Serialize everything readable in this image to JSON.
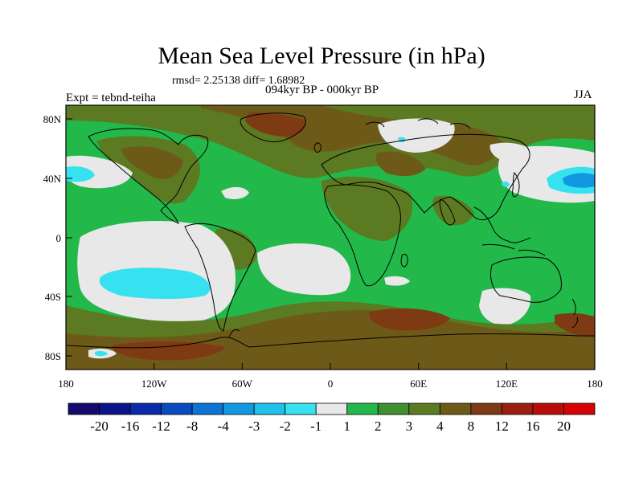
{
  "title": "Mean Sea Level Pressure (in hPa)",
  "stats_line": "rmsd= 2.25138 diff= 1.68982",
  "period": "094kyr BP - 000kyr BP",
  "experiment": "Expt = tebnd-teiha",
  "season": "JJA",
  "lon_ticks": [
    "180",
    "120W",
    "60W",
    "0",
    "60E",
    "120E",
    "180"
  ],
  "lat_ticks": [
    "80N",
    "40N",
    "0",
    "40S",
    "80S"
  ],
  "colorbar": {
    "labels": [
      "-20",
      "-16",
      "-12",
      "-8",
      "-4",
      "-3",
      "-2",
      "-1",
      "1",
      "2",
      "3",
      "4",
      "8",
      "12",
      "16",
      "20"
    ],
    "colors": [
      "#160a6b",
      "#0c148c",
      "#0a2aa8",
      "#0a4cc0",
      "#0d73d4",
      "#1198e0",
      "#1fc0ea",
      "#36e2f0",
      "#e8e8e8",
      "#22b84a",
      "#3f8f2e",
      "#5c7a22",
      "#6e5a18",
      "#7e3a12",
      "#9c1e10",
      "#b80e0a",
      "#d40404"
    ]
  },
  "legend_colors": {
    "land_mid": "#5c7a22",
    "green": "#22b84a",
    "white": "#e8e8e8",
    "cyan": "#36e2f0",
    "blue": "#1198e0",
    "brown": "#6e5a18",
    "darkbrown": "#7e3a12"
  }
}
